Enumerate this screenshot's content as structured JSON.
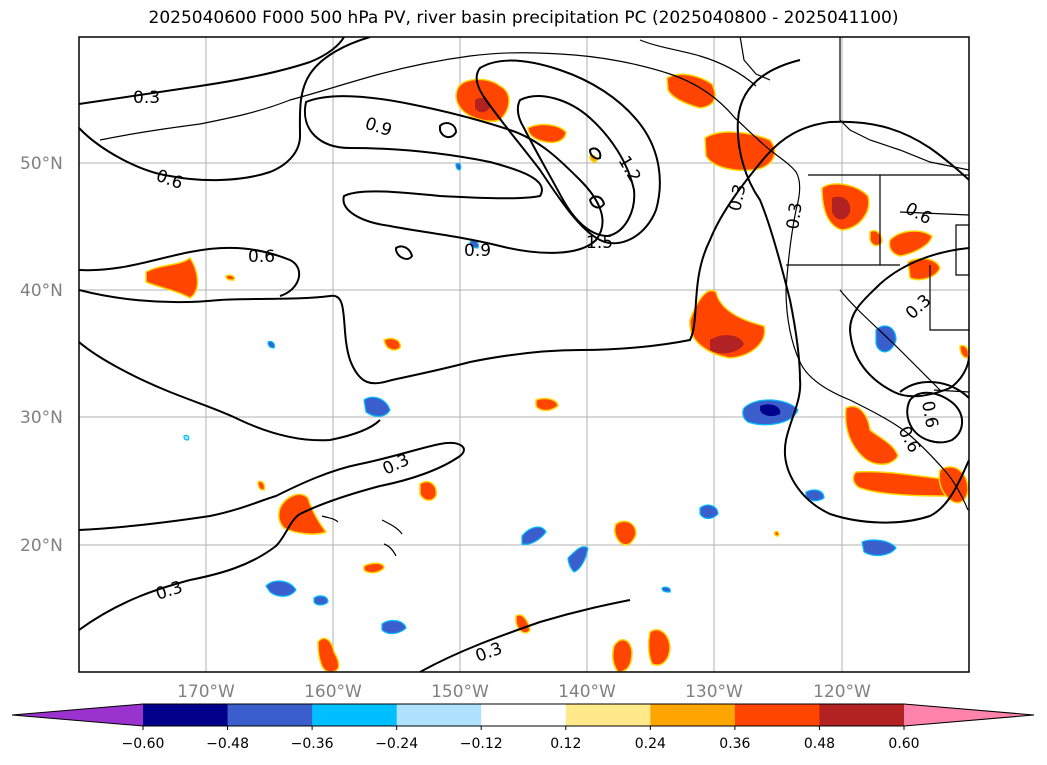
{
  "title": "2025040600 F000 500 hPa PV, river basin precipitation PC (2025040800 - 2025041100)",
  "map": {
    "region": "North Pacific and western North America",
    "lon_range": [
      -180,
      -110
    ],
    "lat_range": [
      10,
      60
    ],
    "gridlines": true,
    "latitude_labels": [
      "50°N",
      "40°N",
      "30°N",
      "20°N"
    ],
    "longitude_labels": [
      "170°W",
      "160°W",
      "150°W",
      "140°W",
      "130°W",
      "120°W"
    ],
    "contour_variable": "500 hPa PV",
    "contour_labels": [
      "0.3",
      "0.6",
      "0.9",
      "1.2",
      "1.5"
    ],
    "colors": {
      "coastline": "#000000",
      "contour": "#000000",
      "grid": "#b0b0b0"
    }
  },
  "colorbar": {
    "extend": "both",
    "tick_labels": [
      "−0.60",
      "−0.48",
      "−0.36",
      "−0.24",
      "−0.12",
      "0.12",
      "0.24",
      "0.36",
      "0.48",
      "0.60"
    ],
    "colors": [
      "#9a32cd",
      "#00008b",
      "#3a5fcd",
      "#00bfff",
      "#b0e2ff",
      "#ffffff",
      "#ffe98a",
      "#ffa500",
      "#ff4500",
      "#b22222",
      "#ff83aa"
    ]
  }
}
